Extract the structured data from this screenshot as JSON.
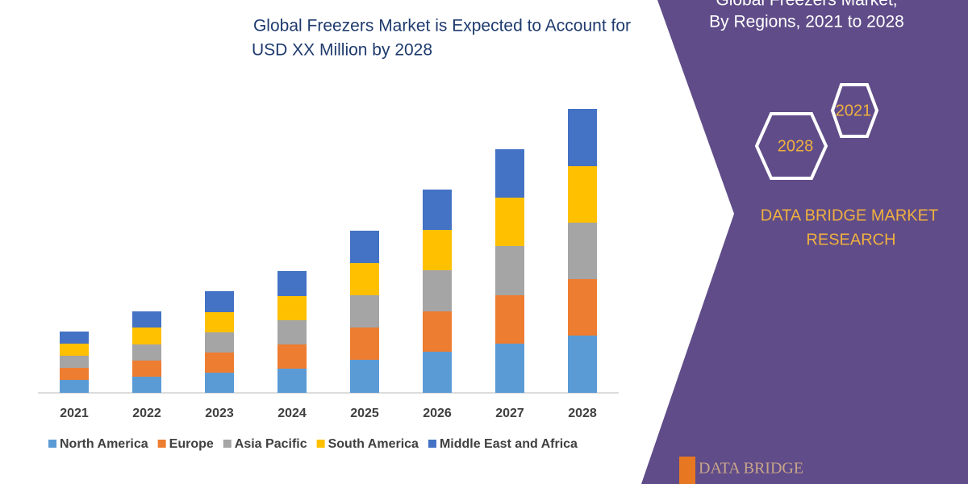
{
  "chart_data": {
    "type": "bar",
    "stacked": true,
    "title": [
      "Global Freezers Market is Expected to Account for",
      "USD XX Million by 2028"
    ],
    "categories": [
      "2021",
      "2022",
      "2023",
      "2024",
      "2025",
      "2026",
      "2027",
      "2028"
    ],
    "series": [
      {
        "name": "North America",
        "color": "#5b9bd5",
        "values": [
          16,
          20,
          25,
          30,
          41,
          51,
          61,
          71
        ]
      },
      {
        "name": "Europe",
        "color": "#ed7d31",
        "values": [
          15,
          20,
          25,
          30,
          40,
          50,
          60,
          70
        ]
      },
      {
        "name": "Asia Pacific",
        "color": "#a5a5a5",
        "values": [
          15,
          20,
          25,
          30,
          40,
          51,
          61,
          70
        ]
      },
      {
        "name": "South America",
        "color": "#ffc000",
        "values": [
          15,
          21,
          25,
          30,
          40,
          50,
          60,
          70
        ]
      },
      {
        "name": "Middle East and Africa",
        "color": "#4472c4",
        "values": [
          15,
          20,
          26,
          31,
          40,
          50,
          60,
          71
        ]
      }
    ],
    "legend": "bottom"
  },
  "panel": {
    "title": [
      "Global Freezers Market,",
      "By Regions, 2021 to 2028"
    ],
    "badges": [
      "2021",
      "2028"
    ],
    "brand": [
      "DATA BRIDGE MARKET",
      "RESEARCH"
    ],
    "logo": "DATA BRIDGE"
  }
}
